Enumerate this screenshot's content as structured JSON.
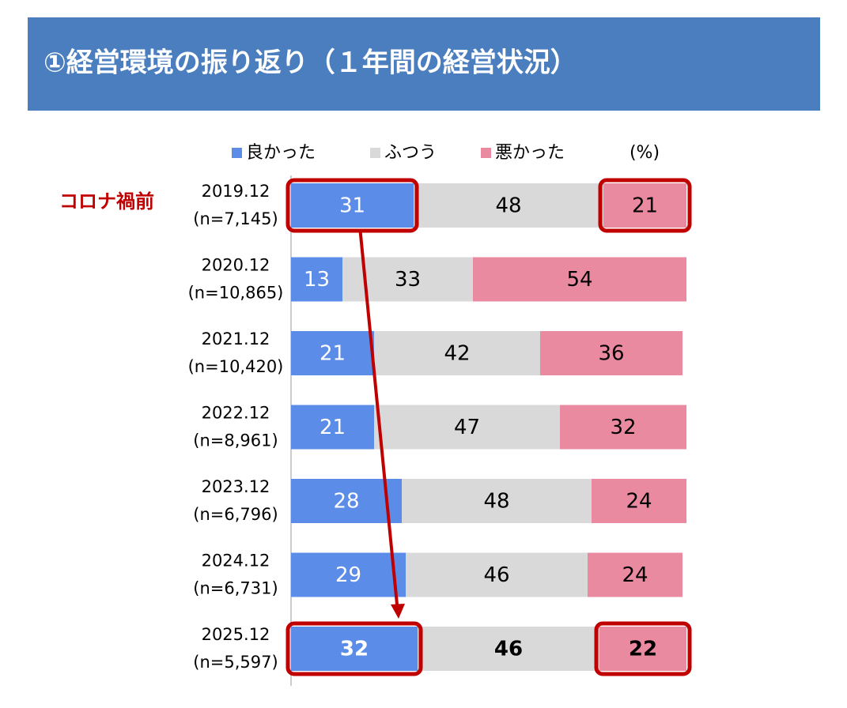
{
  "chart_data": {
    "type": "stacked-barh",
    "title": "①経営環境の振り返り（１年間の経営状況）",
    "unit_label": "(%)",
    "annotation": "コロナ禍前",
    "categories": [
      "2019.12",
      "2020.12",
      "2021.12",
      "2022.12",
      "2023.12",
      "2024.12",
      "2025.12"
    ],
    "sample_sizes": [
      "(n=7,145)",
      "(n=10,865)",
      "(n=10,420)",
      "(n=8,961)",
      "(n=6,796)",
      "(n=6,731)",
      "(n=5,597)"
    ],
    "xlim": [
      0,
      100
    ],
    "series": [
      {
        "name": "良かった",
        "color": "#5b8ce8",
        "values": [
          31,
          13,
          21,
          21,
          28,
          29,
          32
        ]
      },
      {
        "name": "ふつう",
        "color": "#d9d9d9",
        "values": [
          48,
          33,
          42,
          47,
          48,
          46,
          46
        ]
      },
      {
        "name": "悪かった",
        "color": "#e98aa0",
        "values": [
          21,
          54,
          36,
          32,
          24,
          24,
          22
        ]
      }
    ]
  }
}
